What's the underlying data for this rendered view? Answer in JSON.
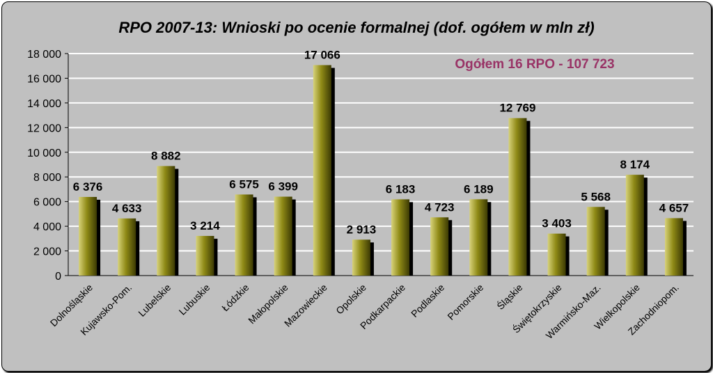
{
  "chart_data": {
    "type": "bar",
    "title": "RPO 2007-13: Wnioski po ocenie formalnej (dof. ogółem w mln zł)",
    "annotation": "Ogółem 16 RPO - 107 723",
    "categories": [
      "Dolnośląskie",
      "Kujawsko-Pom.",
      "Lubelskie",
      "Lubuskie",
      "Łódzkie",
      "Małopolskie",
      "Mazowieckie",
      "Opolskie",
      "Podkarpackie",
      "Podlaskie",
      "Pomorskie",
      "Śląskie",
      "Świętokrzyskie",
      "Warmińsko-Maz.",
      "Wielkopolskie",
      "Zachodniopom."
    ],
    "values": [
      6376,
      4633,
      8882,
      3214,
      6575,
      6399,
      17066,
      2913,
      6183,
      4723,
      6189,
      12769,
      3403,
      5568,
      8174,
      4657
    ],
    "value_labels": [
      "6 376",
      "4 633",
      "8 882",
      "3 214",
      "6 575",
      "6 399",
      "17 066",
      "2 913",
      "6 183",
      "4 723",
      "6 189",
      "12 769",
      "3 403",
      "5 568",
      "8 174",
      "4 657"
    ],
    "y_ticks": [
      0,
      2000,
      4000,
      6000,
      8000,
      10000,
      12000,
      14000,
      16000,
      18000
    ],
    "y_tick_labels": [
      "0",
      "2 000",
      "4 000",
      "6 000",
      "8 000",
      "10 000",
      "12 000",
      "14 000",
      "16 000",
      "18 000"
    ],
    "ylim": [
      0,
      18000
    ],
    "grid": true,
    "legend": "none",
    "colors": {
      "background": "#c0c0c0",
      "bar_light": "#d7d27a",
      "bar_mid": "#8f8a16",
      "bar_dark": "#3c3a04",
      "bar_shadow": "#000000",
      "gridline": "#ffffff",
      "annotation": "#993366",
      "text": "#000000"
    }
  }
}
